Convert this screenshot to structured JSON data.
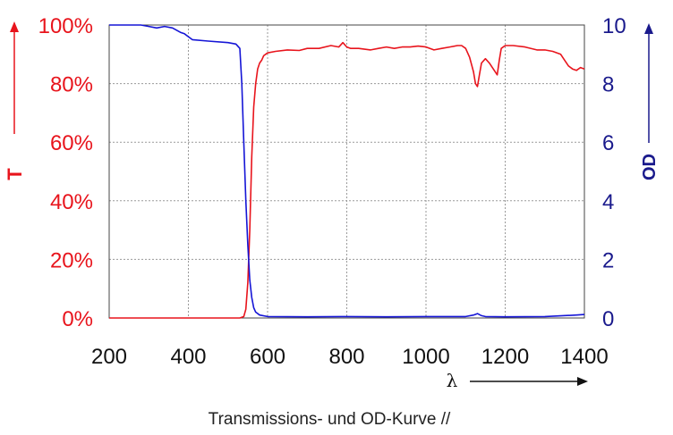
{
  "chart_data": {
    "type": "line",
    "title": "",
    "caption": "Transmissions- und OD-Kurve //",
    "xlabel": "λ",
    "ylabel_left": "T",
    "ylabel_right": "OD",
    "xlim": [
      200,
      1400
    ],
    "ylim_left": [
      0,
      100
    ],
    "ylim_right": [
      0,
      10
    ],
    "xticks": [
      "200",
      "400",
      "600",
      "800",
      "1000",
      "1200",
      "1400"
    ],
    "yticks_left": [
      "0%",
      "20%",
      "40%",
      "60%",
      "80%",
      "100%"
    ],
    "yticks_right": [
      "0",
      "2",
      "4",
      "6",
      "8",
      "10"
    ],
    "grid": true,
    "colors": {
      "transmission": "#e8141c",
      "od": "#1515d6",
      "od_axis": "#1a1a8c",
      "grid": "#9a9a9a"
    },
    "series": [
      {
        "axis": "left",
        "x": [
          200,
          400,
          500,
          530,
          540,
          545,
          550,
          555,
          560,
          565,
          570,
          575,
          580,
          585,
          590,
          600,
          620,
          650,
          680,
          700,
          730,
          760,
          780,
          790,
          800,
          810,
          830,
          860,
          880,
          900,
          920,
          940,
          960,
          980,
          1000,
          1020,
          1040,
          1060,
          1080,
          1090,
          1100,
          1110,
          1120,
          1125,
          1130,
          1135,
          1140,
          1150,
          1160,
          1170,
          1180,
          1185,
          1190,
          1200,
          1220,
          1250,
          1280,
          1300,
          1320,
          1340,
          1350,
          1360,
          1370,
          1380,
          1390,
          1400
        ],
        "values": [
          0,
          0,
          0,
          0,
          0.5,
          3,
          12,
          30,
          55,
          72,
          80,
          85,
          87,
          88,
          89.5,
          90.5,
          91,
          91.5,
          91.3,
          92,
          92,
          93,
          92.5,
          94,
          92.5,
          92,
          92,
          91.5,
          92,
          92.5,
          92,
          92.5,
          92.5,
          92.8,
          92.5,
          91.5,
          92,
          92.5,
          93,
          93,
          92,
          89,
          84,
          80,
          79,
          83,
          87,
          88.5,
          87,
          85,
          83,
          88,
          92,
          93,
          93,
          92.5,
          91.5,
          91.5,
          91,
          90,
          88,
          86,
          85,
          84.5,
          85.5,
          85
        ]
      },
      {
        "axis": "right",
        "x": [
          200,
          250,
          280,
          300,
          320,
          340,
          360,
          380,
          390,
          400,
          410,
          450,
          500,
          520,
          530,
          535,
          540,
          545,
          550,
          555,
          560,
          565,
          570,
          580,
          600,
          700,
          800,
          900,
          1000,
          1100,
          1120,
          1130,
          1140,
          1150,
          1200,
          1300,
          1380,
          1400
        ],
        "values": [
          10,
          10,
          10,
          9.95,
          9.9,
          9.95,
          9.9,
          9.75,
          9.7,
          9.6,
          9.5,
          9.45,
          9.4,
          9.35,
          9.2,
          8,
          6,
          4,
          2.5,
          1.3,
          0.7,
          0.35,
          0.2,
          0.1,
          0.05,
          0.04,
          0.05,
          0.04,
          0.05,
          0.05,
          0.1,
          0.15,
          0.08,
          0.05,
          0.04,
          0.05,
          0.1,
          0.12
        ]
      }
    ]
  }
}
